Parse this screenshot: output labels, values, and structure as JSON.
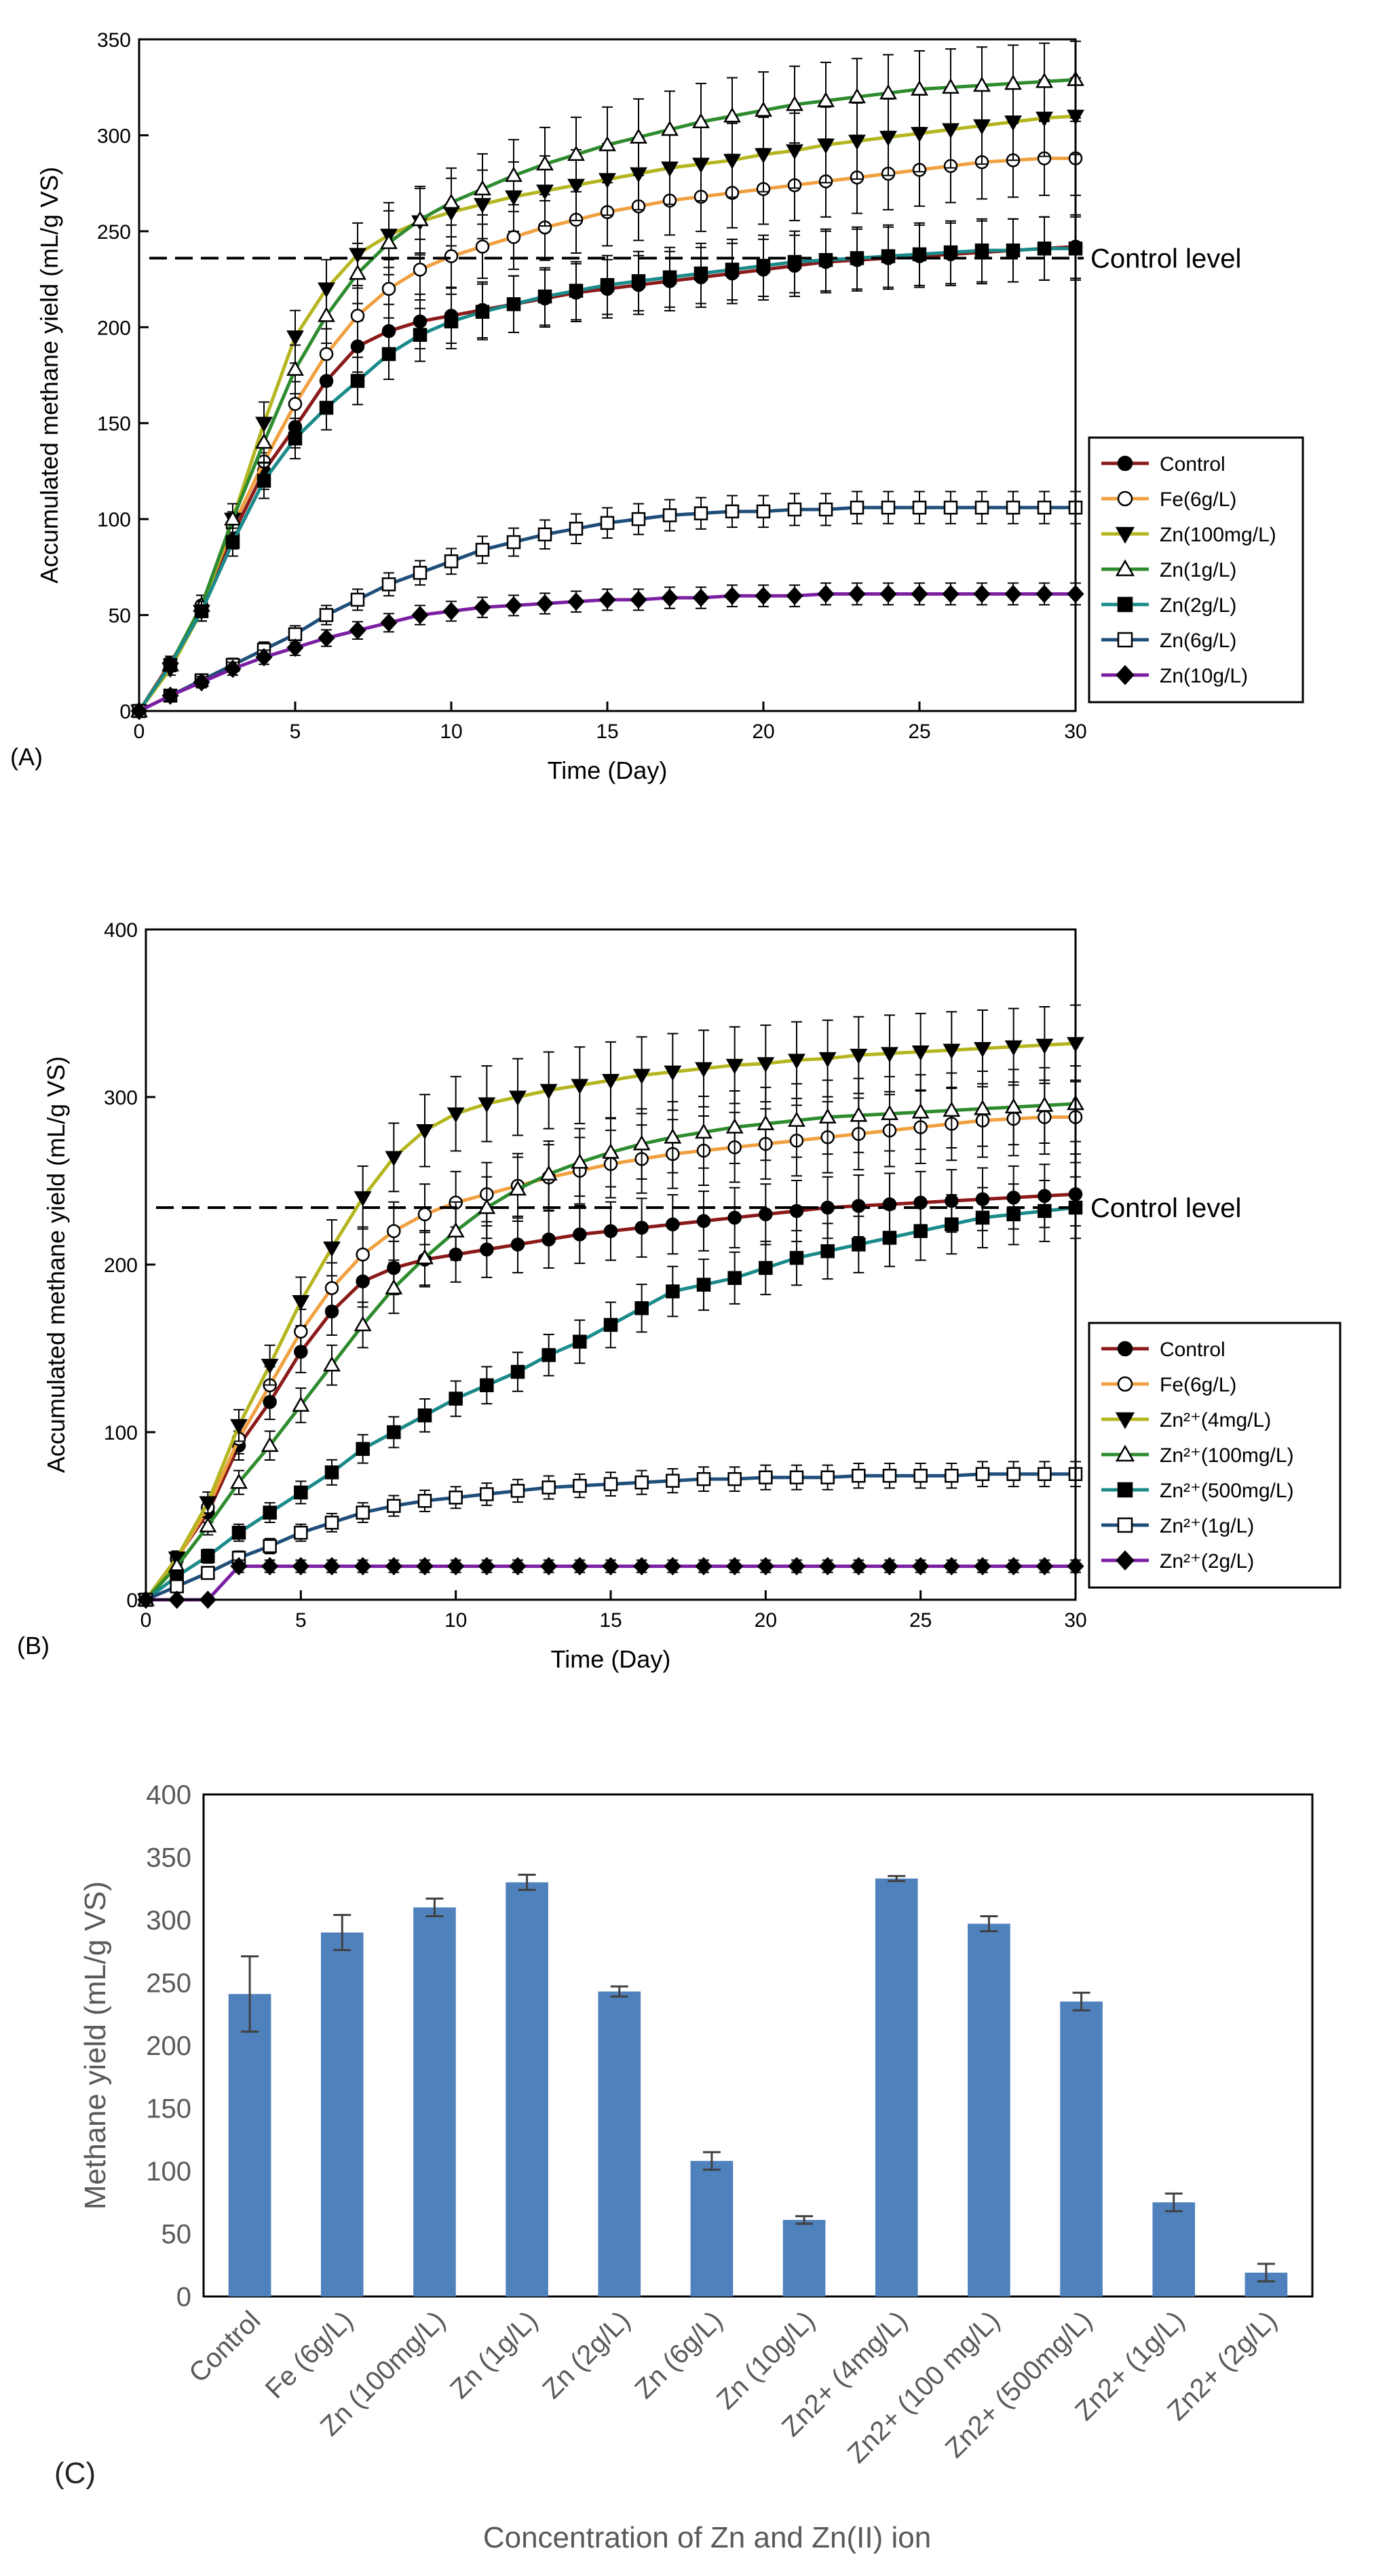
{
  "chart_data": [
    {
      "type": "line",
      "panel_label": "(A)",
      "xlabel": "Time (Day)",
      "ylabel": "Accumulated methane yield (mL/g VS)",
      "xlim": [
        0,
        30
      ],
      "ylim": [
        0,
        350
      ],
      "xticks": [
        "0",
        "5",
        "10",
        "15",
        "20",
        "25",
        "30"
      ],
      "yticks": [
        "0",
        "50",
        "100",
        "150",
        "200",
        "250",
        "300",
        "350"
      ],
      "reference_line": {
        "label": "Control level",
        "value": 236
      },
      "legend_position": "middle-right",
      "series": [
        {
          "name": "Control",
          "line": "#8b1a1a",
          "marker": "circle",
          "fill": "#000000",
          "x": [
            0,
            1,
            2,
            3,
            4,
            5,
            6,
            7,
            8,
            9,
            10,
            11,
            12,
            13,
            14,
            15,
            16,
            17,
            18,
            19,
            20,
            21,
            22,
            23,
            24,
            25,
            26,
            27,
            28,
            29,
            30
          ],
          "y": [
            0,
            25,
            52,
            92,
            125,
            148,
            172,
            190,
            198,
            203,
            206,
            209,
            212,
            215,
            218,
            220,
            222,
            224,
            226,
            228,
            230,
            232,
            234,
            235,
            236,
            237,
            238,
            239,
            240,
            241,
            242
          ]
        },
        {
          "name": "Fe(6g/L)",
          "line": "#f0a040",
          "marker": "circle",
          "fill": "#ffffff",
          "x": [
            0,
            1,
            2,
            3,
            4,
            5,
            6,
            7,
            8,
            9,
            10,
            11,
            12,
            13,
            14,
            15,
            16,
            17,
            18,
            19,
            20,
            21,
            22,
            23,
            24,
            25,
            26,
            27,
            28,
            29,
            30
          ],
          "y": [
            0,
            24,
            55,
            96,
            130,
            160,
            186,
            206,
            220,
            230,
            237,
            242,
            247,
            252,
            256,
            260,
            263,
            266,
            268,
            270,
            272,
            274,
            276,
            278,
            280,
            282,
            284,
            286,
            287,
            288,
            288
          ]
        },
        {
          "name": "Zn(100mg/L)",
          "line": "#b5b520",
          "marker": "triangle-down",
          "fill": "#000000",
          "x": [
            0,
            1,
            2,
            3,
            4,
            5,
            6,
            7,
            8,
            9,
            10,
            11,
            12,
            13,
            14,
            15,
            16,
            17,
            18,
            19,
            20,
            21,
            22,
            23,
            24,
            25,
            26,
            27,
            28,
            29,
            30
          ],
          "y": [
            0,
            22,
            52,
            100,
            150,
            195,
            220,
            238,
            248,
            255,
            260,
            264,
            268,
            271,
            274,
            277,
            280,
            283,
            285,
            287,
            290,
            292,
            295,
            297,
            299,
            301,
            303,
            305,
            307,
            309,
            310
          ]
        },
        {
          "name": "Zn(1g/L)",
          "line": "#2e8b2e",
          "marker": "triangle-up",
          "fill": "#ffffff",
          "x": [
            0,
            1,
            2,
            3,
            4,
            5,
            6,
            7,
            8,
            9,
            10,
            11,
            12,
            13,
            14,
            15,
            16,
            17,
            18,
            19,
            20,
            21,
            22,
            23,
            24,
            25,
            26,
            27,
            28,
            29,
            30
          ],
          "y": [
            0,
            24,
            55,
            100,
            140,
            178,
            206,
            228,
            244,
            256,
            265,
            272,
            279,
            285,
            290,
            295,
            299,
            303,
            307,
            310,
            313,
            316,
            318,
            320,
            322,
            324,
            325,
            326,
            327,
            328,
            329
          ]
        },
        {
          "name": "Zn(2g/L)",
          "line": "#1a8a8a",
          "marker": "square",
          "fill": "#000000",
          "x": [
            0,
            1,
            2,
            3,
            4,
            5,
            6,
            7,
            8,
            9,
            10,
            11,
            12,
            13,
            14,
            15,
            16,
            17,
            18,
            19,
            20,
            21,
            22,
            23,
            24,
            25,
            26,
            27,
            28,
            29,
            30
          ],
          "y": [
            0,
            24,
            52,
            88,
            120,
            142,
            158,
            172,
            186,
            196,
            203,
            208,
            212,
            216,
            219,
            222,
            224,
            226,
            228,
            230,
            232,
            234,
            235,
            236,
            237,
            238,
            239,
            240,
            240,
            241,
            241
          ]
        },
        {
          "name": "Zn(6g/L)",
          "line": "#1f4e79",
          "marker": "square",
          "fill": "#ffffff",
          "x": [
            0,
            1,
            2,
            3,
            4,
            5,
            6,
            7,
            8,
            9,
            10,
            11,
            12,
            13,
            14,
            15,
            16,
            17,
            18,
            19,
            20,
            21,
            22,
            23,
            24,
            25,
            26,
            27,
            28,
            29,
            30
          ],
          "y": [
            0,
            8,
            16,
            24,
            32,
            40,
            50,
            58,
            66,
            72,
            78,
            84,
            88,
            92,
            95,
            98,
            100,
            102,
            103,
            104,
            104,
            105,
            105,
            106,
            106,
            106,
            106,
            106,
            106,
            106,
            106
          ]
        },
        {
          "name": "Zn(10g/L)",
          "line": "#7b1fa2",
          "marker": "diamond",
          "fill": "#000000",
          "x": [
            0,
            1,
            2,
            3,
            4,
            5,
            6,
            7,
            8,
            9,
            10,
            11,
            12,
            13,
            14,
            15,
            16,
            17,
            18,
            19,
            20,
            21,
            22,
            23,
            24,
            25,
            26,
            27,
            28,
            29,
            30
          ],
          "y": [
            0,
            8,
            15,
            22,
            28,
            33,
            38,
            42,
            46,
            50,
            52,
            54,
            55,
            56,
            57,
            58,
            58,
            59,
            59,
            60,
            60,
            60,
            61,
            61,
            61,
            61,
            61,
            61,
            61,
            61,
            61
          ]
        }
      ]
    },
    {
      "type": "line",
      "panel_label": "(B)",
      "xlabel": "Time (Day)",
      "ylabel": "Accumulated methane yield (mL/g VS)",
      "xlim": [
        0,
        30
      ],
      "ylim": [
        0,
        400
      ],
      "xticks": [
        "0",
        "5",
        "10",
        "15",
        "20",
        "25",
        "30"
      ],
      "yticks": [
        "0",
        "100",
        "200",
        "300",
        "400"
      ],
      "reference_line": {
        "label": "Control level",
        "value": 234
      },
      "legend_position": "bottom-right",
      "series": [
        {
          "name": "Control",
          "line": "#8b1a1a",
          "marker": "circle",
          "fill": "#000000",
          "x": [
            0,
            1,
            2,
            3,
            4,
            5,
            6,
            7,
            8,
            9,
            10,
            11,
            12,
            13,
            14,
            15,
            16,
            17,
            18,
            19,
            20,
            21,
            22,
            23,
            24,
            25,
            26,
            27,
            28,
            29,
            30
          ],
          "y": [
            0,
            25,
            52,
            92,
            118,
            148,
            172,
            190,
            198,
            203,
            206,
            209,
            212,
            215,
            218,
            220,
            222,
            224,
            226,
            228,
            230,
            232,
            234,
            235,
            236,
            237,
            238,
            239,
            240,
            241,
            242
          ]
        },
        {
          "name": "Fe(6g/L)",
          "line": "#f0a040",
          "marker": "circle",
          "fill": "#ffffff",
          "x": [
            0,
            1,
            2,
            3,
            4,
            5,
            6,
            7,
            8,
            9,
            10,
            11,
            12,
            13,
            14,
            15,
            16,
            17,
            18,
            19,
            20,
            21,
            22,
            23,
            24,
            25,
            26,
            27,
            28,
            29,
            30
          ],
          "y": [
            0,
            24,
            55,
            96,
            128,
            160,
            186,
            206,
            220,
            230,
            237,
            242,
            247,
            252,
            256,
            260,
            263,
            266,
            268,
            270,
            272,
            274,
            276,
            278,
            280,
            282,
            284,
            286,
            287,
            288,
            288
          ]
        },
        {
          "name": "Zn²⁺(4mg/L)",
          "line": "#b5b520",
          "marker": "triangle-down",
          "fill": "#000000",
          "x": [
            0,
            1,
            2,
            3,
            4,
            5,
            6,
            7,
            8,
            9,
            10,
            11,
            12,
            13,
            14,
            15,
            16,
            17,
            18,
            19,
            20,
            21,
            22,
            23,
            24,
            25,
            26,
            27,
            28,
            29,
            30
          ],
          "y": [
            0,
            25,
            58,
            104,
            140,
            178,
            210,
            240,
            264,
            280,
            290,
            296,
            300,
            304,
            307,
            310,
            313,
            315,
            317,
            319,
            320,
            322,
            323,
            325,
            326,
            327,
            328,
            329,
            330,
            331,
            332
          ]
        },
        {
          "name": "Zn²⁺(100mg/L)",
          "line": "#2e8b2e",
          "marker": "triangle-up",
          "fill": "#ffffff",
          "x": [
            0,
            1,
            2,
            3,
            4,
            5,
            6,
            7,
            8,
            9,
            10,
            11,
            12,
            13,
            14,
            15,
            16,
            17,
            18,
            19,
            20,
            21,
            22,
            23,
            24,
            25,
            26,
            27,
            28,
            29,
            30
          ],
          "y": [
            0,
            20,
            44,
            70,
            92,
            116,
            140,
            164,
            186,
            204,
            220,
            234,
            245,
            254,
            261,
            267,
            272,
            276,
            279,
            282,
            284,
            286,
            288,
            289,
            290,
            291,
            292,
            293,
            294,
            295,
            296
          ]
        },
        {
          "name": "Zn²⁺(500mg/L)",
          "line": "#1a8a8a",
          "marker": "square",
          "fill": "#000000",
          "x": [
            0,
            1,
            2,
            3,
            4,
            5,
            6,
            7,
            8,
            9,
            10,
            11,
            12,
            13,
            14,
            15,
            16,
            17,
            18,
            19,
            20,
            21,
            22,
            23,
            24,
            25,
            26,
            27,
            28,
            29,
            30
          ],
          "y": [
            0,
            14,
            26,
            40,
            52,
            64,
            76,
            90,
            100,
            110,
            120,
            128,
            136,
            146,
            154,
            164,
            174,
            184,
            188,
            192,
            198,
            204,
            208,
            212,
            216,
            220,
            224,
            228,
            230,
            232,
            234
          ]
        },
        {
          "name": "Zn²⁺(1g/L)",
          "line": "#1f4e79",
          "marker": "square",
          "fill": "#ffffff",
          "x": [
            0,
            1,
            2,
            3,
            4,
            5,
            6,
            7,
            8,
            9,
            10,
            11,
            12,
            13,
            14,
            15,
            16,
            17,
            18,
            19,
            20,
            21,
            22,
            23,
            24,
            25,
            26,
            27,
            28,
            29,
            30
          ],
          "y": [
            0,
            8,
            16,
            25,
            32,
            40,
            46,
            52,
            56,
            59,
            61,
            63,
            65,
            67,
            68,
            69,
            70,
            71,
            72,
            72,
            73,
            73,
            73,
            74,
            74,
            74,
            74,
            75,
            75,
            75,
            75
          ]
        },
        {
          "name": "Zn²⁺(2g/L)",
          "line": "#7b1fa2",
          "marker": "diamond",
          "fill": "#000000",
          "x": [
            0,
            1,
            2,
            3,
            4,
            5,
            6,
            7,
            8,
            9,
            10,
            11,
            12,
            13,
            14,
            15,
            16,
            17,
            18,
            19,
            20,
            21,
            22,
            23,
            24,
            25,
            26,
            27,
            28,
            29,
            30
          ],
          "y": [
            0,
            0,
            0,
            20,
            20,
            20,
            20,
            20,
            20,
            20,
            20,
            20,
            20,
            20,
            20,
            20,
            20,
            20,
            20,
            20,
            20,
            20,
            20,
            20,
            20,
            20,
            20,
            20,
            20,
            20,
            20
          ]
        }
      ]
    },
    {
      "type": "bar",
      "panel_label": "(C)",
      "xlabel": "Concentration of Zn and Zn(II) ion",
      "ylabel": "Methane yield (mL/g VS)",
      "ylim": [
        0,
        400
      ],
      "yticks": [
        "0",
        "50",
        "100",
        "150",
        "200",
        "250",
        "300",
        "350",
        "400"
      ],
      "bar_color": "#4f81bd",
      "categories": [
        "Control",
        "Fe (6g/L)",
        "Zn (100mg/L)",
        "Zn (1g/L)",
        "Zn (2g/L)",
        "Zn (6g/L)",
        "Zn (10g/L)",
        "Zn2+ (4mg/L)",
        "Zn2+ (100 mg/L)",
        "Zn2+ (500mg/L)",
        "Zn2+ (1g/L)",
        "Zn2+ (2g/L)"
      ],
      "values": [
        241,
        290,
        310,
        330,
        243,
        108,
        61,
        333,
        297,
        235,
        75,
        19
      ],
      "errors": [
        30,
        14,
        7,
        6,
        4,
        7,
        3,
        2,
        6,
        7,
        7,
        7
      ]
    }
  ]
}
